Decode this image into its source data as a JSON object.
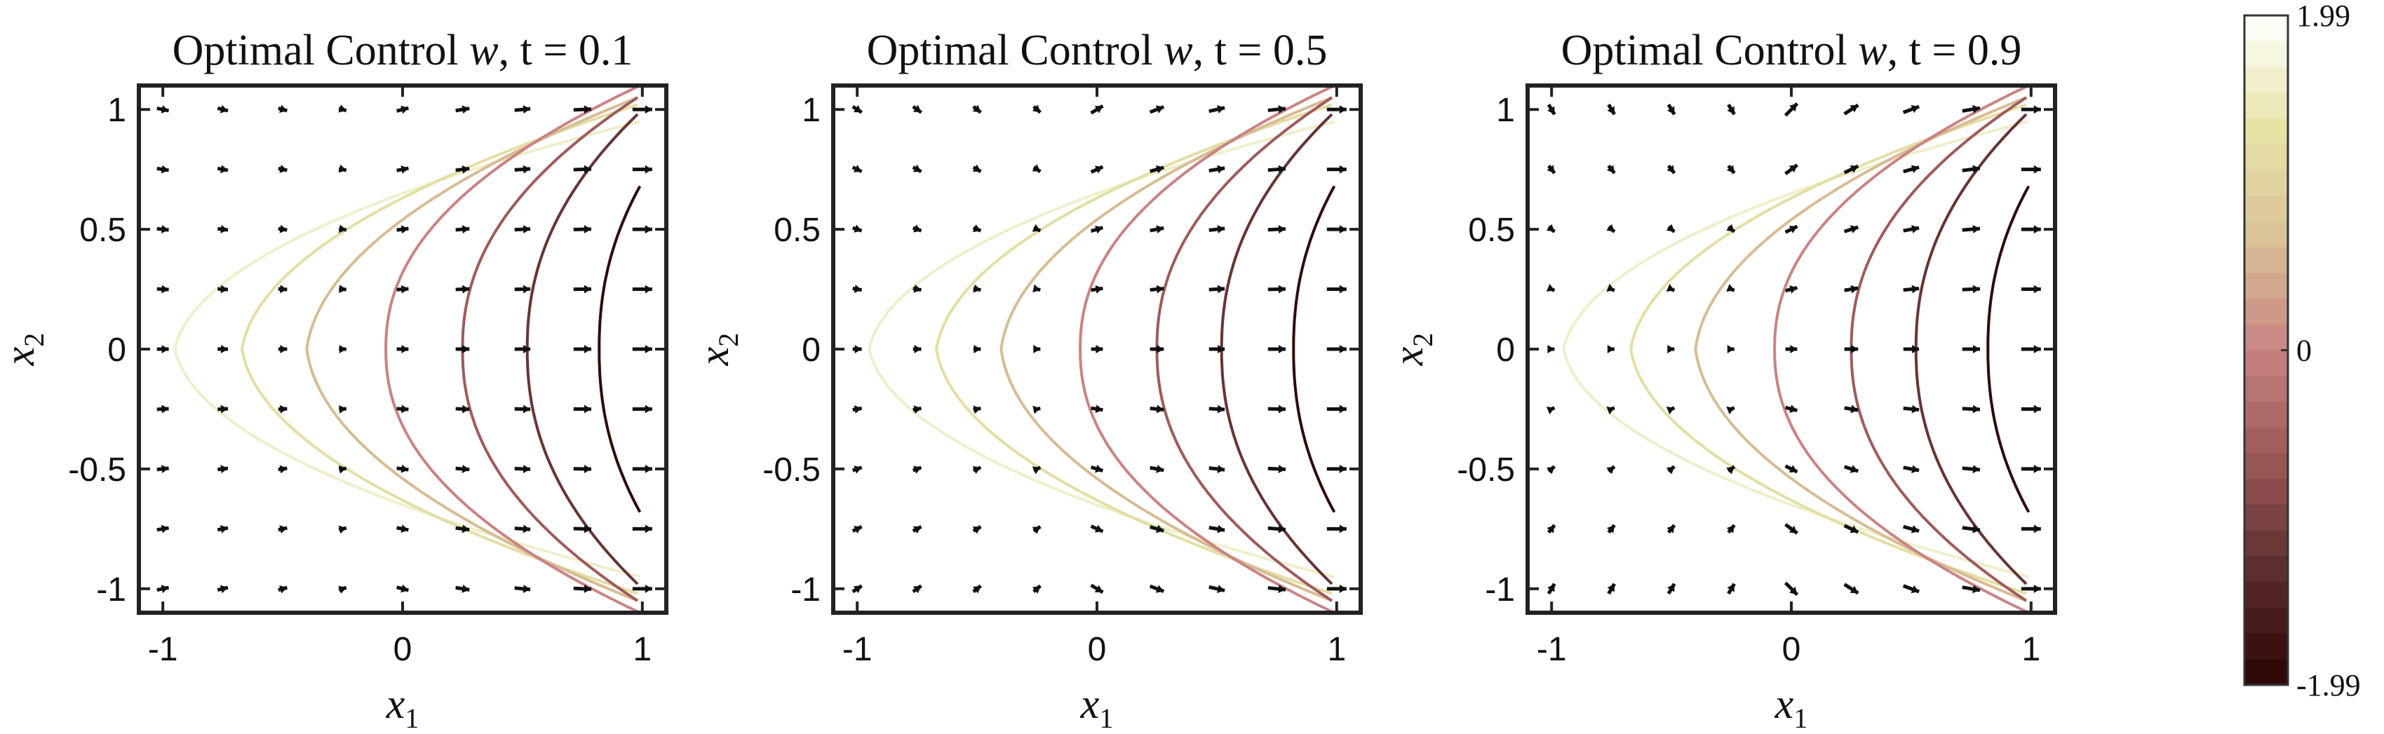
{
  "chart_data": [
    {
      "type": "contour-quiver",
      "title": "Optimal Control ⃗w, t = 0.1",
      "title_main": "Optimal Control ",
      "title_var": "w",
      "title_time": ", t = 0.1",
      "xlabel": "x",
      "xlabel_sub": "1",
      "ylabel": "x",
      "ylabel_sub": "2",
      "xlim": [
        -1.1,
        1.1
      ],
      "ylim": [
        -1.1,
        1.1
      ],
      "xticks": [
        -1,
        0,
        1
      ],
      "yticks": [
        -1,
        -0.5,
        0,
        0.5,
        1
      ],
      "tick_labels_x": [
        "-1",
        "0",
        "1"
      ],
      "tick_labels_y": [
        "-1",
        "-0.5",
        "0",
        "0.5",
        "1"
      ],
      "contour_levels": [
        1.6,
        1.2,
        0.6,
        0.0,
        -0.6,
        -1.2,
        -1.9
      ],
      "quiver_strength": 0.25
    },
    {
      "type": "contour-quiver",
      "title_main": "Optimal Control ",
      "title_var": "w",
      "title_time": ", t = 0.5",
      "xlabel": "x",
      "xlabel_sub": "1",
      "ylabel": "x",
      "ylabel_sub": "2",
      "xlim": [
        -1.1,
        1.1
      ],
      "ylim": [
        -1.1,
        1.1
      ],
      "xticks": [
        -1,
        0,
        1
      ],
      "yticks": [
        -1,
        -0.5,
        0,
        0.5,
        1
      ],
      "tick_labels_x": [
        "-1",
        "0",
        "1"
      ],
      "tick_labels_y": [
        "-1",
        "-0.5",
        "0",
        "0.5",
        "1"
      ],
      "contour_levels": [
        1.6,
        1.2,
        0.6,
        0.0,
        -0.6,
        -1.2,
        -1.9
      ],
      "quiver_strength": 0.6
    },
    {
      "type": "contour-quiver",
      "title_main": "Optimal Control ",
      "title_var": "w",
      "title_time": ", t = 0.9",
      "xlabel": "x",
      "xlabel_sub": "1",
      "ylabel": "x",
      "ylabel_sub": "2",
      "xlim": [
        -1.1,
        1.1
      ],
      "ylim": [
        -1.1,
        1.1
      ],
      "xticks": [
        -1,
        0,
        1
      ],
      "yticks": [
        -1,
        -0.5,
        0,
        0.5,
        1
      ],
      "tick_labels_x": [
        "-1",
        "0",
        "1"
      ],
      "tick_labels_y": [
        "-1",
        "-0.5",
        "0",
        "0.5",
        "1"
      ],
      "contour_levels": [
        1.6,
        1.2,
        0.6,
        0.0,
        -0.6,
        -1.2,
        -1.9
      ],
      "quiver_strength": 1.0
    }
  ],
  "colorbar": {
    "min": -1.99,
    "max": 1.99,
    "tick_labels": [
      "1.99",
      "0",
      "-1.99"
    ],
    "tick_values": [
      1.99,
      0,
      -1.99
    ],
    "colors": [
      "#ffffff",
      "#e6e4a8",
      "#d9c296",
      "#c98383",
      "#9a5757",
      "#5a2c2c",
      "#2a0303"
    ]
  }
}
